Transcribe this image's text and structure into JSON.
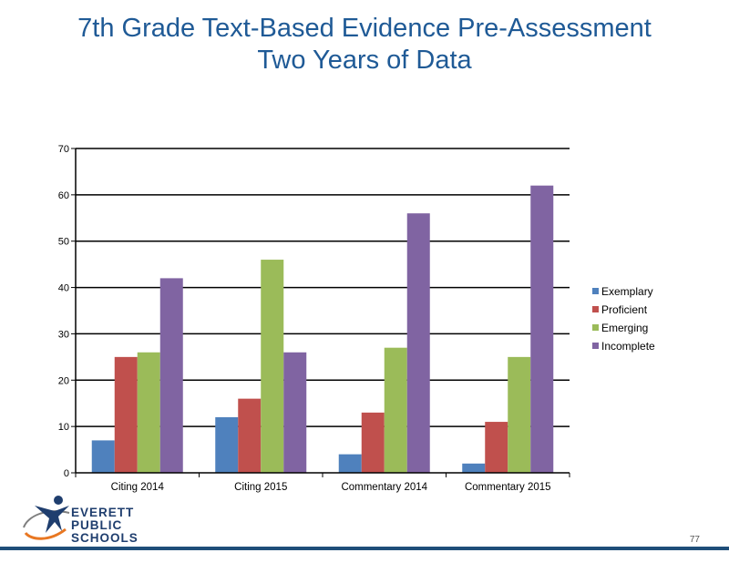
{
  "title": {
    "line1": "7th Grade Text-Based Evidence Pre-Assessment",
    "line2": "Two Years of Data"
  },
  "chart_data": {
    "type": "bar",
    "categories": [
      "Citing 2014",
      "Citing 2015",
      "Commentary 2014",
      "Commentary 2015"
    ],
    "series": [
      {
        "name": "Exemplary",
        "color": "#4f81bd",
        "values": [
          7,
          12,
          4,
          2
        ]
      },
      {
        "name": "Proficient",
        "color": "#c0504d",
        "values": [
          25,
          16,
          13,
          11
        ]
      },
      {
        "name": "Emerging",
        "color": "#9bbb59",
        "values": [
          26,
          46,
          27,
          25
        ]
      },
      {
        "name": "Incomplete",
        "color": "#8064a2",
        "values": [
          42,
          26,
          56,
          62
        ]
      }
    ],
    "ylim": [
      0,
      70
    ],
    "yticks": [
      0,
      10,
      20,
      30,
      40,
      50,
      60,
      70
    ],
    "grid": true,
    "legend": "right"
  },
  "logo": {
    "line1": "EVERETT",
    "line2": "PUBLIC",
    "line3": "SCHOOLS"
  },
  "page_number": "77"
}
